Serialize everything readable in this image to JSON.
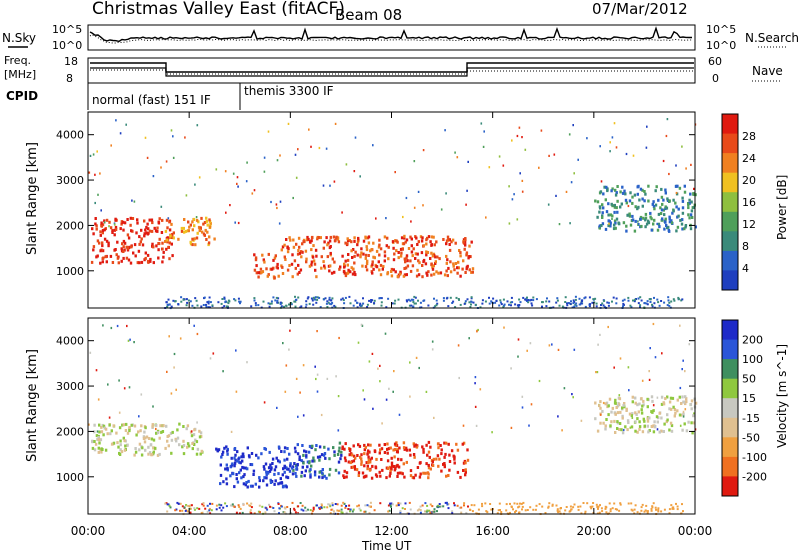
{
  "header": {
    "site": "Christmas Valley East (fitACF)",
    "beam": "Beam 08",
    "date": "07/Mar/2012"
  },
  "top_panel": {
    "nsky_label": "N.Sky",
    "nsearch_label": "N.Search",
    "left_ticks": [
      "10^5",
      "10^0"
    ],
    "right_ticks": [
      "10^5",
      "10^0"
    ]
  },
  "freq_panel": {
    "freq_label": "Freq.",
    "freq_unit": "[MHz]",
    "left_ticks": [
      "18",
      "8"
    ],
    "nave_label": "Nave",
    "right_ticks": [
      "60",
      "0"
    ]
  },
  "cpid": {
    "label": "CPID",
    "modes": [
      "normal (fast) 151 IF",
      "themis 3300 IF"
    ]
  },
  "colors": {
    "power": [
      "#1f3fbf",
      "#2a62c8",
      "#3a8a7a",
      "#4f9f5a",
      "#8fbf3f",
      "#f0c020",
      "#f08020",
      "#e84a1a",
      "#e01a10"
    ],
    "velocity": [
      "#1e2ac8",
      "#2a55d8",
      "#3f8f5f",
      "#8fc83f",
      "#c8c8c0",
      "#e0c090",
      "#f0a040",
      "#f07020",
      "#e01a10"
    ]
  },
  "chart_data": [
    {
      "type": "heatmap",
      "name": "power",
      "ylabel": "Slant Range [km]",
      "xlabel": "",
      "colorbar_label": "Power [dB]",
      "colorbar_ticks": [
        "28",
        "24",
        "20",
        "16",
        "12",
        "8",
        "4"
      ],
      "x_ticks": [
        "00:00",
        "04:00",
        "08:00",
        "12:00",
        "16:00",
        "20:00",
        "00:00"
      ],
      "xlim": [
        0,
        24
      ],
      "ylim": [
        180,
        4500
      ],
      "y_ticks": [
        1000,
        2000,
        3000,
        4000
      ],
      "regions": [
        {
          "t0": 0.1,
          "t1": 3.3,
          "r0": 1200,
          "r1": 2200,
          "level": 8
        },
        {
          "t0": 3.0,
          "t1": 5.0,
          "r0": 1600,
          "r1": 2200,
          "level": 6
        },
        {
          "t0": 6.5,
          "t1": 7.6,
          "r0": 850,
          "r1": 1400,
          "level": 7
        },
        {
          "t0": 7.6,
          "t1": 15.2,
          "r0": 900,
          "r1": 1800,
          "level": 7
        },
        {
          "t0": 20.0,
          "t1": 24.0,
          "r0": 1900,
          "r1": 2900,
          "level": 2
        }
      ]
    },
    {
      "type": "heatmap",
      "name": "velocity",
      "ylabel": "Slant Range [km]",
      "xlabel": "Time UT",
      "colorbar_label": "Velocity [m s^-1]",
      "colorbar_ticks": [
        "200",
        "100",
        "50",
        "15",
        "-15",
        "-50",
        "-100",
        "-200"
      ],
      "x_ticks": [
        "00:00",
        "04:00",
        "08:00",
        "12:00",
        "16:00",
        "20:00",
        "00:00"
      ],
      "xlim": [
        0,
        24
      ],
      "ylim": [
        180,
        4500
      ],
      "y_ticks": [
        1000,
        2000,
        3000,
        4000
      ],
      "regions": [
        {
          "t0": 0.1,
          "t1": 4.5,
          "r0": 1500,
          "r1": 2200,
          "level": 4
        },
        {
          "t0": 5.0,
          "t1": 8.0,
          "r0": 800,
          "r1": 1700,
          "level": 0
        },
        {
          "t0": 8.0,
          "t1": 10.0,
          "r0": 1000,
          "r1": 1800,
          "level": 1
        },
        {
          "t0": 10.0,
          "t1": 15.0,
          "r0": 1000,
          "r1": 1800,
          "level": 8
        },
        {
          "t0": 20.0,
          "t1": 24.0,
          "r0": 2000,
          "r1": 2800,
          "level": 4
        }
      ]
    }
  ]
}
